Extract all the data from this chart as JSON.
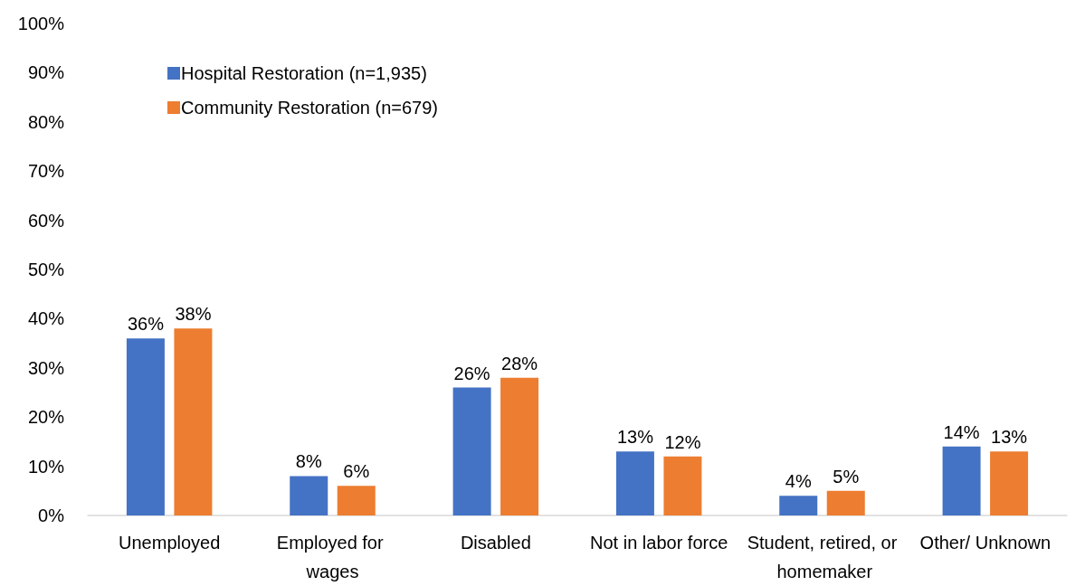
{
  "chart_data": {
    "type": "bar",
    "categories": [
      "Unemployed",
      "Employed for wages",
      "Disabled",
      "Not in labor force",
      "Student, retired, or homemaker",
      "Other/ Unknown"
    ],
    "series": [
      {
        "name": "Hospital Restoration (n=1,935)",
        "color": "#4472c4",
        "values": [
          36,
          8,
          26,
          13,
          4,
          14
        ],
        "value_labels": [
          "36%",
          "8%",
          "26%",
          "13%",
          "4%",
          "14%"
        ]
      },
      {
        "name": "Community Restoration (n=679)",
        "color": "#ed7d31",
        "values": [
          38,
          6,
          28,
          12,
          5,
          13
        ],
        "value_labels": [
          "38%",
          "6%",
          "28%",
          "12%",
          "5%",
          "13%"
        ]
      }
    ],
    "ylim": [
      0,
      100
    ],
    "yticks": [
      {
        "value": 0,
        "label": "0%"
      },
      {
        "value": 10,
        "label": "10%"
      },
      {
        "value": 20,
        "label": "20%"
      },
      {
        "value": 30,
        "label": "30%"
      },
      {
        "value": 40,
        "label": "40%"
      },
      {
        "value": 50,
        "label": "50%"
      },
      {
        "value": 60,
        "label": "60%"
      },
      {
        "value": 70,
        "label": "70%"
      },
      {
        "value": 80,
        "label": "80%"
      },
      {
        "value": 90,
        "label": "90%"
      },
      {
        "value": 100,
        "label": "100%"
      }
    ],
    "grid": false,
    "legend": "top left"
  }
}
